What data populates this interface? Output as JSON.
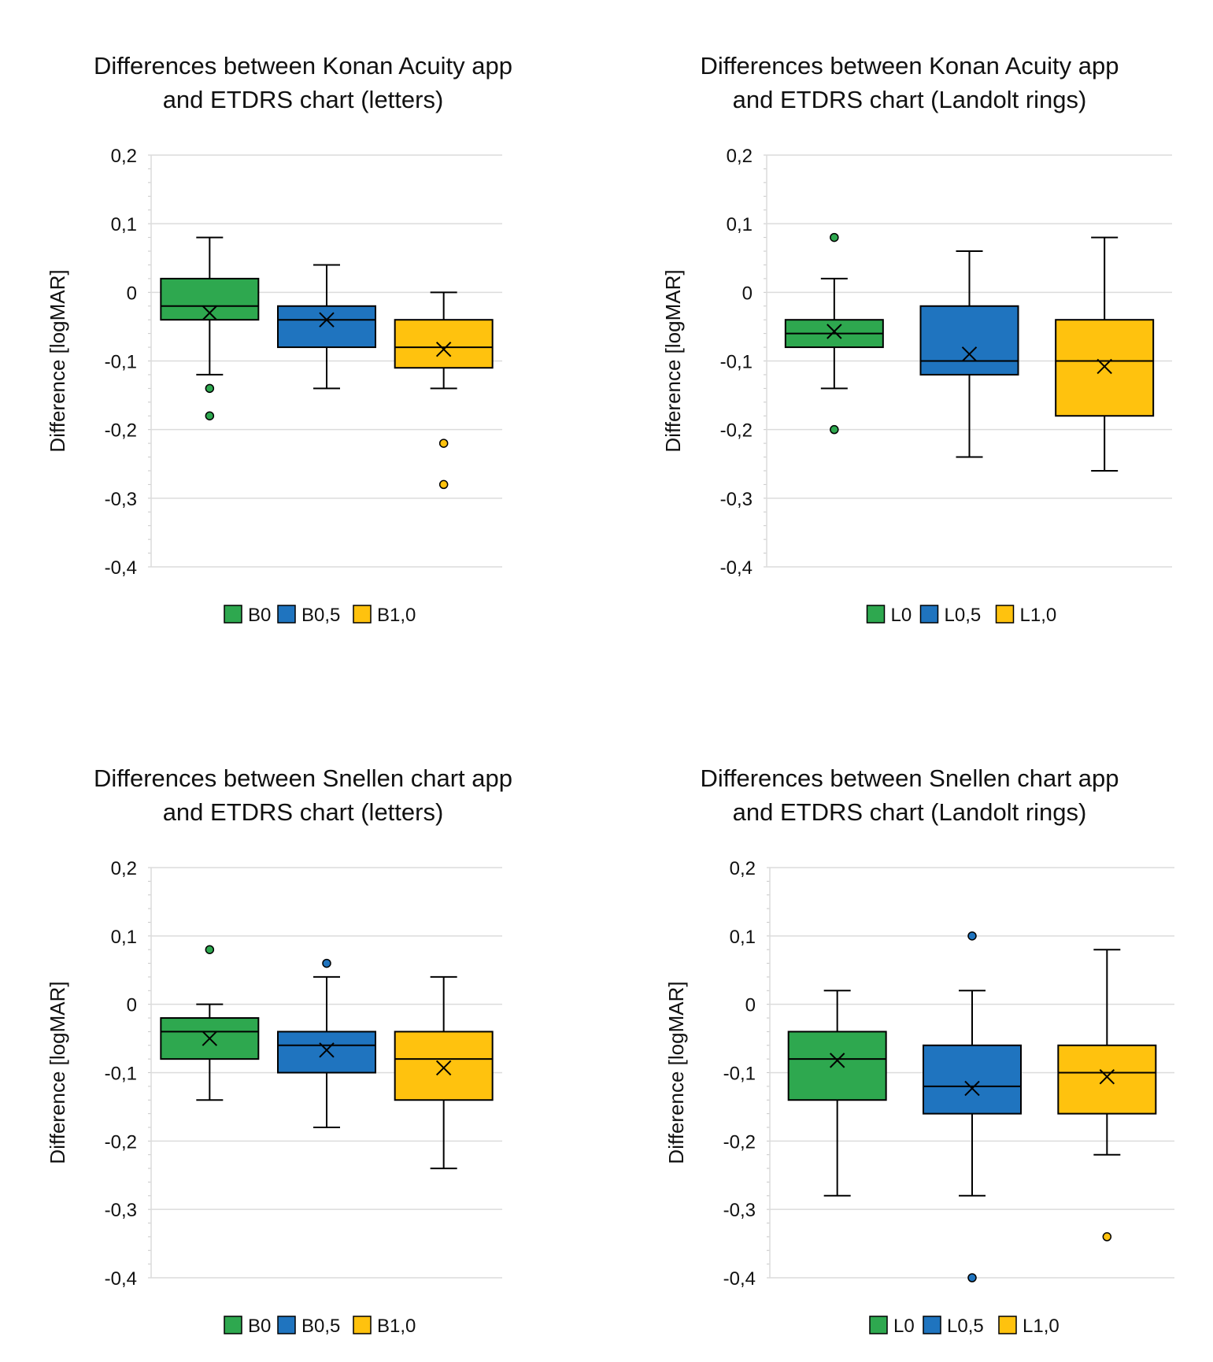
{
  "colors": {
    "green": "#2ea84f",
    "blue": "#1f74bf",
    "yellow": "#ffc20e",
    "grid": "#dcdcdc",
    "stroke": "#000000"
  },
  "chart_data": [
    {
      "type": "box",
      "title_line1": "Differences between Konan Acuity app",
      "title_line2": "and ETDRS chart (letters)",
      "ylabel": "Difference [logMAR]",
      "ylim": [
        -0.4,
        0.2
      ],
      "yticks": [
        0.2,
        0.1,
        0.0,
        -0.1,
        -0.2,
        -0.3,
        -0.4
      ],
      "ytick_labels": [
        "0,2",
        "0,1",
        "0",
        "-0,1",
        "-0,2",
        "-0,3",
        "-0,4"
      ],
      "legend_position": "bottom",
      "series": [
        {
          "name": "B0",
          "color": "#2ea84f",
          "whisker_low": -0.12,
          "q1": -0.04,
          "median": -0.02,
          "q3": 0.02,
          "whisker_high": 0.08,
          "mean": -0.03,
          "outliers": [
            -0.14,
            -0.18
          ]
        },
        {
          "name": "B0,5",
          "color": "#1f74bf",
          "whisker_low": -0.14,
          "q1": -0.08,
          "median": -0.04,
          "q3": -0.02,
          "whisker_high": 0.04,
          "mean": -0.04,
          "outliers": []
        },
        {
          "name": "B1,0",
          "color": "#ffc20e",
          "whisker_low": -0.14,
          "q1": -0.11,
          "median": -0.08,
          "q3": -0.04,
          "whisker_high": 0.0,
          "mean": -0.083,
          "outliers": [
            -0.22,
            -0.28
          ]
        }
      ]
    },
    {
      "type": "box",
      "title_line1": "Differences between Konan Acuity app",
      "title_line2": "and ETDRS chart (Landolt rings)",
      "ylabel": "Difference [logMAR]",
      "ylim": [
        -0.4,
        0.2
      ],
      "yticks": [
        0.2,
        0.1,
        0.0,
        -0.1,
        -0.2,
        -0.3,
        -0.4
      ],
      "ytick_labels": [
        "0,2",
        "0,1",
        "0",
        "-0,1",
        "-0,2",
        "-0,3",
        "-0,4"
      ],
      "legend_position": "bottom",
      "series": [
        {
          "name": "L0",
          "color": "#2ea84f",
          "whisker_low": -0.14,
          "q1": -0.08,
          "median": -0.06,
          "q3": -0.04,
          "whisker_high": 0.02,
          "mean": -0.057,
          "outliers": [
            0.08,
            -0.2
          ]
        },
        {
          "name": "L0,5",
          "color": "#1f74bf",
          "whisker_low": -0.24,
          "q1": -0.12,
          "median": -0.1,
          "q3": -0.02,
          "whisker_high": 0.06,
          "mean": -0.09,
          "outliers": []
        },
        {
          "name": "L1,0",
          "color": "#ffc20e",
          "whisker_low": -0.26,
          "q1": -0.18,
          "median": -0.1,
          "q3": -0.04,
          "whisker_high": 0.08,
          "mean": -0.108,
          "outliers": []
        }
      ]
    },
    {
      "type": "box",
      "title_line1": "Differences between Snellen chart app",
      "title_line2": "and ETDRS chart (letters)",
      "ylabel": "Difference [logMAR]",
      "ylim": [
        -0.4,
        0.2
      ],
      "yticks": [
        0.2,
        0.1,
        0.0,
        -0.1,
        -0.2,
        -0.3,
        -0.4
      ],
      "ytick_labels": [
        "0,2",
        "0,1",
        "0",
        "-0,1",
        "-0,2",
        "-0,3",
        "-0,4"
      ],
      "legend_position": "bottom",
      "series": [
        {
          "name": "B0",
          "color": "#2ea84f",
          "whisker_low": -0.14,
          "q1": -0.08,
          "median": -0.04,
          "q3": -0.02,
          "whisker_high": 0.0,
          "mean": -0.05,
          "outliers": [
            0.08
          ]
        },
        {
          "name": "B0,5",
          "color": "#1f74bf",
          "whisker_low": -0.18,
          "q1": -0.1,
          "median": -0.06,
          "q3": -0.04,
          "whisker_high": 0.04,
          "mean": -0.067,
          "outliers": [
            0.06
          ]
        },
        {
          "name": "B1,0",
          "color": "#ffc20e",
          "whisker_low": -0.24,
          "q1": -0.14,
          "median": -0.08,
          "q3": -0.04,
          "whisker_high": 0.04,
          "mean": -0.093,
          "outliers": []
        }
      ]
    },
    {
      "type": "box",
      "title_line1": "Differences between Snellen chart app",
      "title_line2": "and ETDRS chart (Landolt rings)",
      "ylabel": "Difference [logMAR]",
      "ylim": [
        -0.4,
        0.2
      ],
      "yticks": [
        0.2,
        0.1,
        0.0,
        -0.1,
        -0.2,
        -0.3,
        -0.4
      ],
      "ytick_labels": [
        "0,2",
        "0,1",
        "0",
        "-0,1",
        "-0,2",
        "-0,3",
        "-0,4"
      ],
      "legend_position": "bottom",
      "series": [
        {
          "name": "L0",
          "color": "#2ea84f",
          "whisker_low": -0.28,
          "q1": -0.14,
          "median": -0.08,
          "q3": -0.04,
          "whisker_high": 0.02,
          "mean": -0.082,
          "outliers": []
        },
        {
          "name": "L0,5",
          "color": "#1f74bf",
          "whisker_low": -0.28,
          "q1": -0.16,
          "median": -0.12,
          "q3": -0.06,
          "whisker_high": 0.02,
          "mean": -0.123,
          "outliers": [
            0.1,
            -0.4
          ]
        },
        {
          "name": "L1,0",
          "color": "#ffc20e",
          "whisker_low": -0.22,
          "q1": -0.16,
          "median": -0.1,
          "q3": -0.06,
          "whisker_high": 0.08,
          "mean": -0.106,
          "outliers": [
            -0.34
          ]
        }
      ]
    }
  ]
}
